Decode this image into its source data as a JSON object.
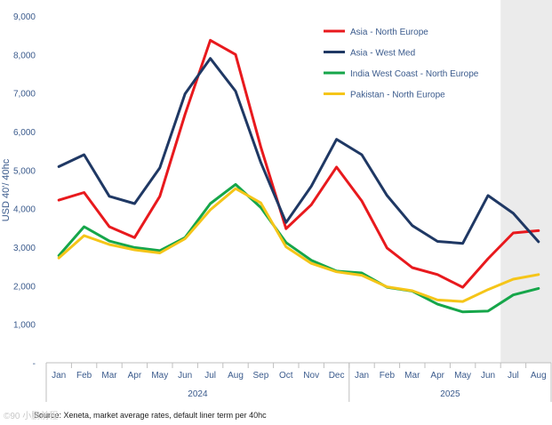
{
  "chart_data": {
    "type": "line",
    "ylabel": "USD 40'/ 40hc",
    "ylim": [
      0,
      9000
    ],
    "yticks": [
      "9,000",
      "8,000",
      "7,000",
      "6,000",
      "5,000",
      "4,000",
      "3,000",
      "2,000",
      "1,000",
      "-"
    ],
    "categories": [
      "Jan",
      "Feb",
      "Mar",
      "Apr",
      "May",
      "Jun",
      "Jul",
      "Aug",
      "Sep",
      "Oct",
      "Nov",
      "Dec",
      "Jan",
      "Feb",
      "Mar",
      "Apr",
      "May",
      "Jun",
      "Jul",
      "Aug"
    ],
    "years": [
      {
        "label": "2024",
        "start": 0,
        "end": 11
      },
      {
        "label": "2025",
        "start": 12,
        "end": 19
      }
    ],
    "shaded_from_index": 18,
    "series": [
      {
        "name": "Asia - North Europe",
        "color": "#e8191d",
        "values": [
          4220,
          4420,
          3530,
          3250,
          4320,
          6450,
          8370,
          8000,
          5600,
          3480,
          4100,
          5080,
          4200,
          2980,
          2470,
          2290,
          1960,
          2700,
          3370,
          3430
        ]
      },
      {
        "name": "Asia - West Med",
        "color": "#1f3864",
        "values": [
          5090,
          5400,
          4320,
          4130,
          5060,
          6980,
          7900,
          7050,
          5200,
          3640,
          4580,
          5800,
          5400,
          4340,
          3560,
          3150,
          3100,
          4340,
          3880,
          3140
        ]
      },
      {
        "name": "India West Coast - North Europe",
        "color": "#16a64a",
        "values": [
          2780,
          3530,
          3160,
          2990,
          2910,
          3250,
          4130,
          4630,
          4030,
          3120,
          2660,
          2380,
          2330,
          1960,
          1860,
          1520,
          1320,
          1340,
          1760,
          1930
        ]
      },
      {
        "name": "Pakistan - North Europe",
        "color": "#f5c518",
        "values": [
          2720,
          3300,
          3070,
          2930,
          2850,
          3220,
          3970,
          4520,
          4150,
          3010,
          2580,
          2360,
          2270,
          1970,
          1870,
          1630,
          1590,
          1900,
          2170,
          2290
        ]
      }
    ]
  },
  "source_text": "Source: Xeneta, market average rates, default liner term per 40hc",
  "watermark_text": "©90 小鹏前程"
}
